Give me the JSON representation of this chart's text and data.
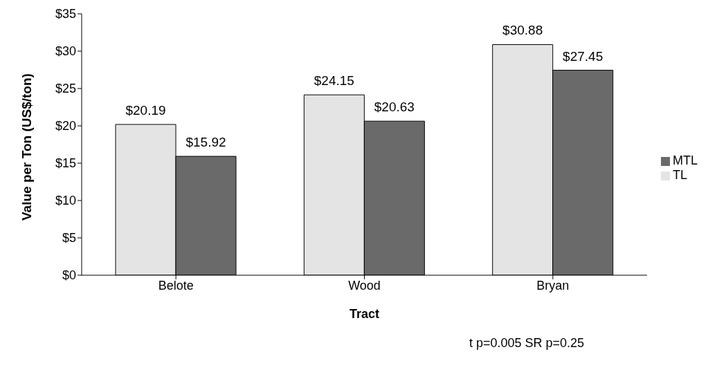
{
  "chart_data": {
    "type": "bar",
    "xlabel": "Tract",
    "ylabel": "Value per Ton (US$/ton)",
    "categories": [
      "Belote",
      "Wood",
      "Bryan"
    ],
    "series": [
      {
        "name": "TL",
        "color": "#e4e4e4",
        "values": [
          20.19,
          24.15,
          30.88
        ],
        "value_labels": [
          "$20.19",
          "$24.15",
          "$30.88"
        ]
      },
      {
        "name": "MTL",
        "color": "#6a6a6a",
        "values": [
          15.92,
          20.63,
          27.45
        ],
        "value_labels": [
          "$15.92",
          "$20.63",
          "$27.45"
        ]
      }
    ],
    "ylim": [
      0,
      35
    ],
    "yticks": [
      {
        "value": 0,
        "label": "$0"
      },
      {
        "value": 5,
        "label": "$5"
      },
      {
        "value": 10,
        "label": "$10"
      },
      {
        "value": 15,
        "label": "$15"
      },
      {
        "value": 20,
        "label": "$20"
      },
      {
        "value": 25,
        "label": "$25"
      },
      {
        "value": 30,
        "label": "$30"
      },
      {
        "value": 35,
        "label": "$35"
      }
    ],
    "grid": false,
    "legend": "right",
    "annotations": [
      "t p=0.005 SR p=0.25"
    ]
  }
}
